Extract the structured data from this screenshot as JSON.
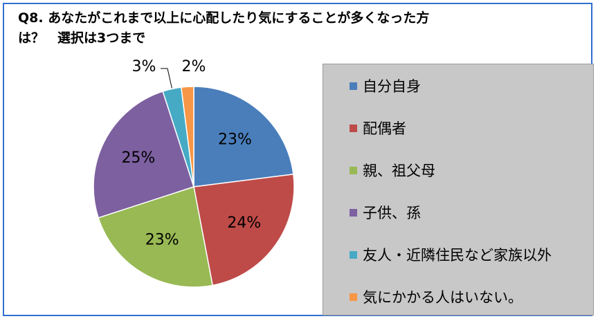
{
  "title_line1": "Q8. あなたがこれまで以上に心配したり気にすることが多くなった方",
  "title_line2": "は？　選択は3つまで",
  "chart_data": {
    "type": "pie",
    "title": "Q8. あなたがこれまで以上に心配したり気にすることが多くなった方は？　選択は3つまで",
    "legend_position": "right",
    "slices": [
      {
        "label": "自分自身",
        "value": 23,
        "value_label": "23%",
        "color": "#4a7ebb"
      },
      {
        "label": "配偶者",
        "value": 24,
        "value_label": "24%",
        "color": "#be4b48"
      },
      {
        "label": "親、祖父母",
        "value": 23,
        "value_label": "23%",
        "color": "#98b954"
      },
      {
        "label": "子供、孫",
        "value": 25,
        "value_label": "25%",
        "color": "#7d60a0"
      },
      {
        "label": "友人・近隣住民など家族以外",
        "value": 3,
        "value_label": "3%",
        "color": "#46aac5"
      },
      {
        "label": "気にかかる人はいない。",
        "value": 2,
        "value_label": "2%",
        "color": "#f79646"
      }
    ]
  }
}
